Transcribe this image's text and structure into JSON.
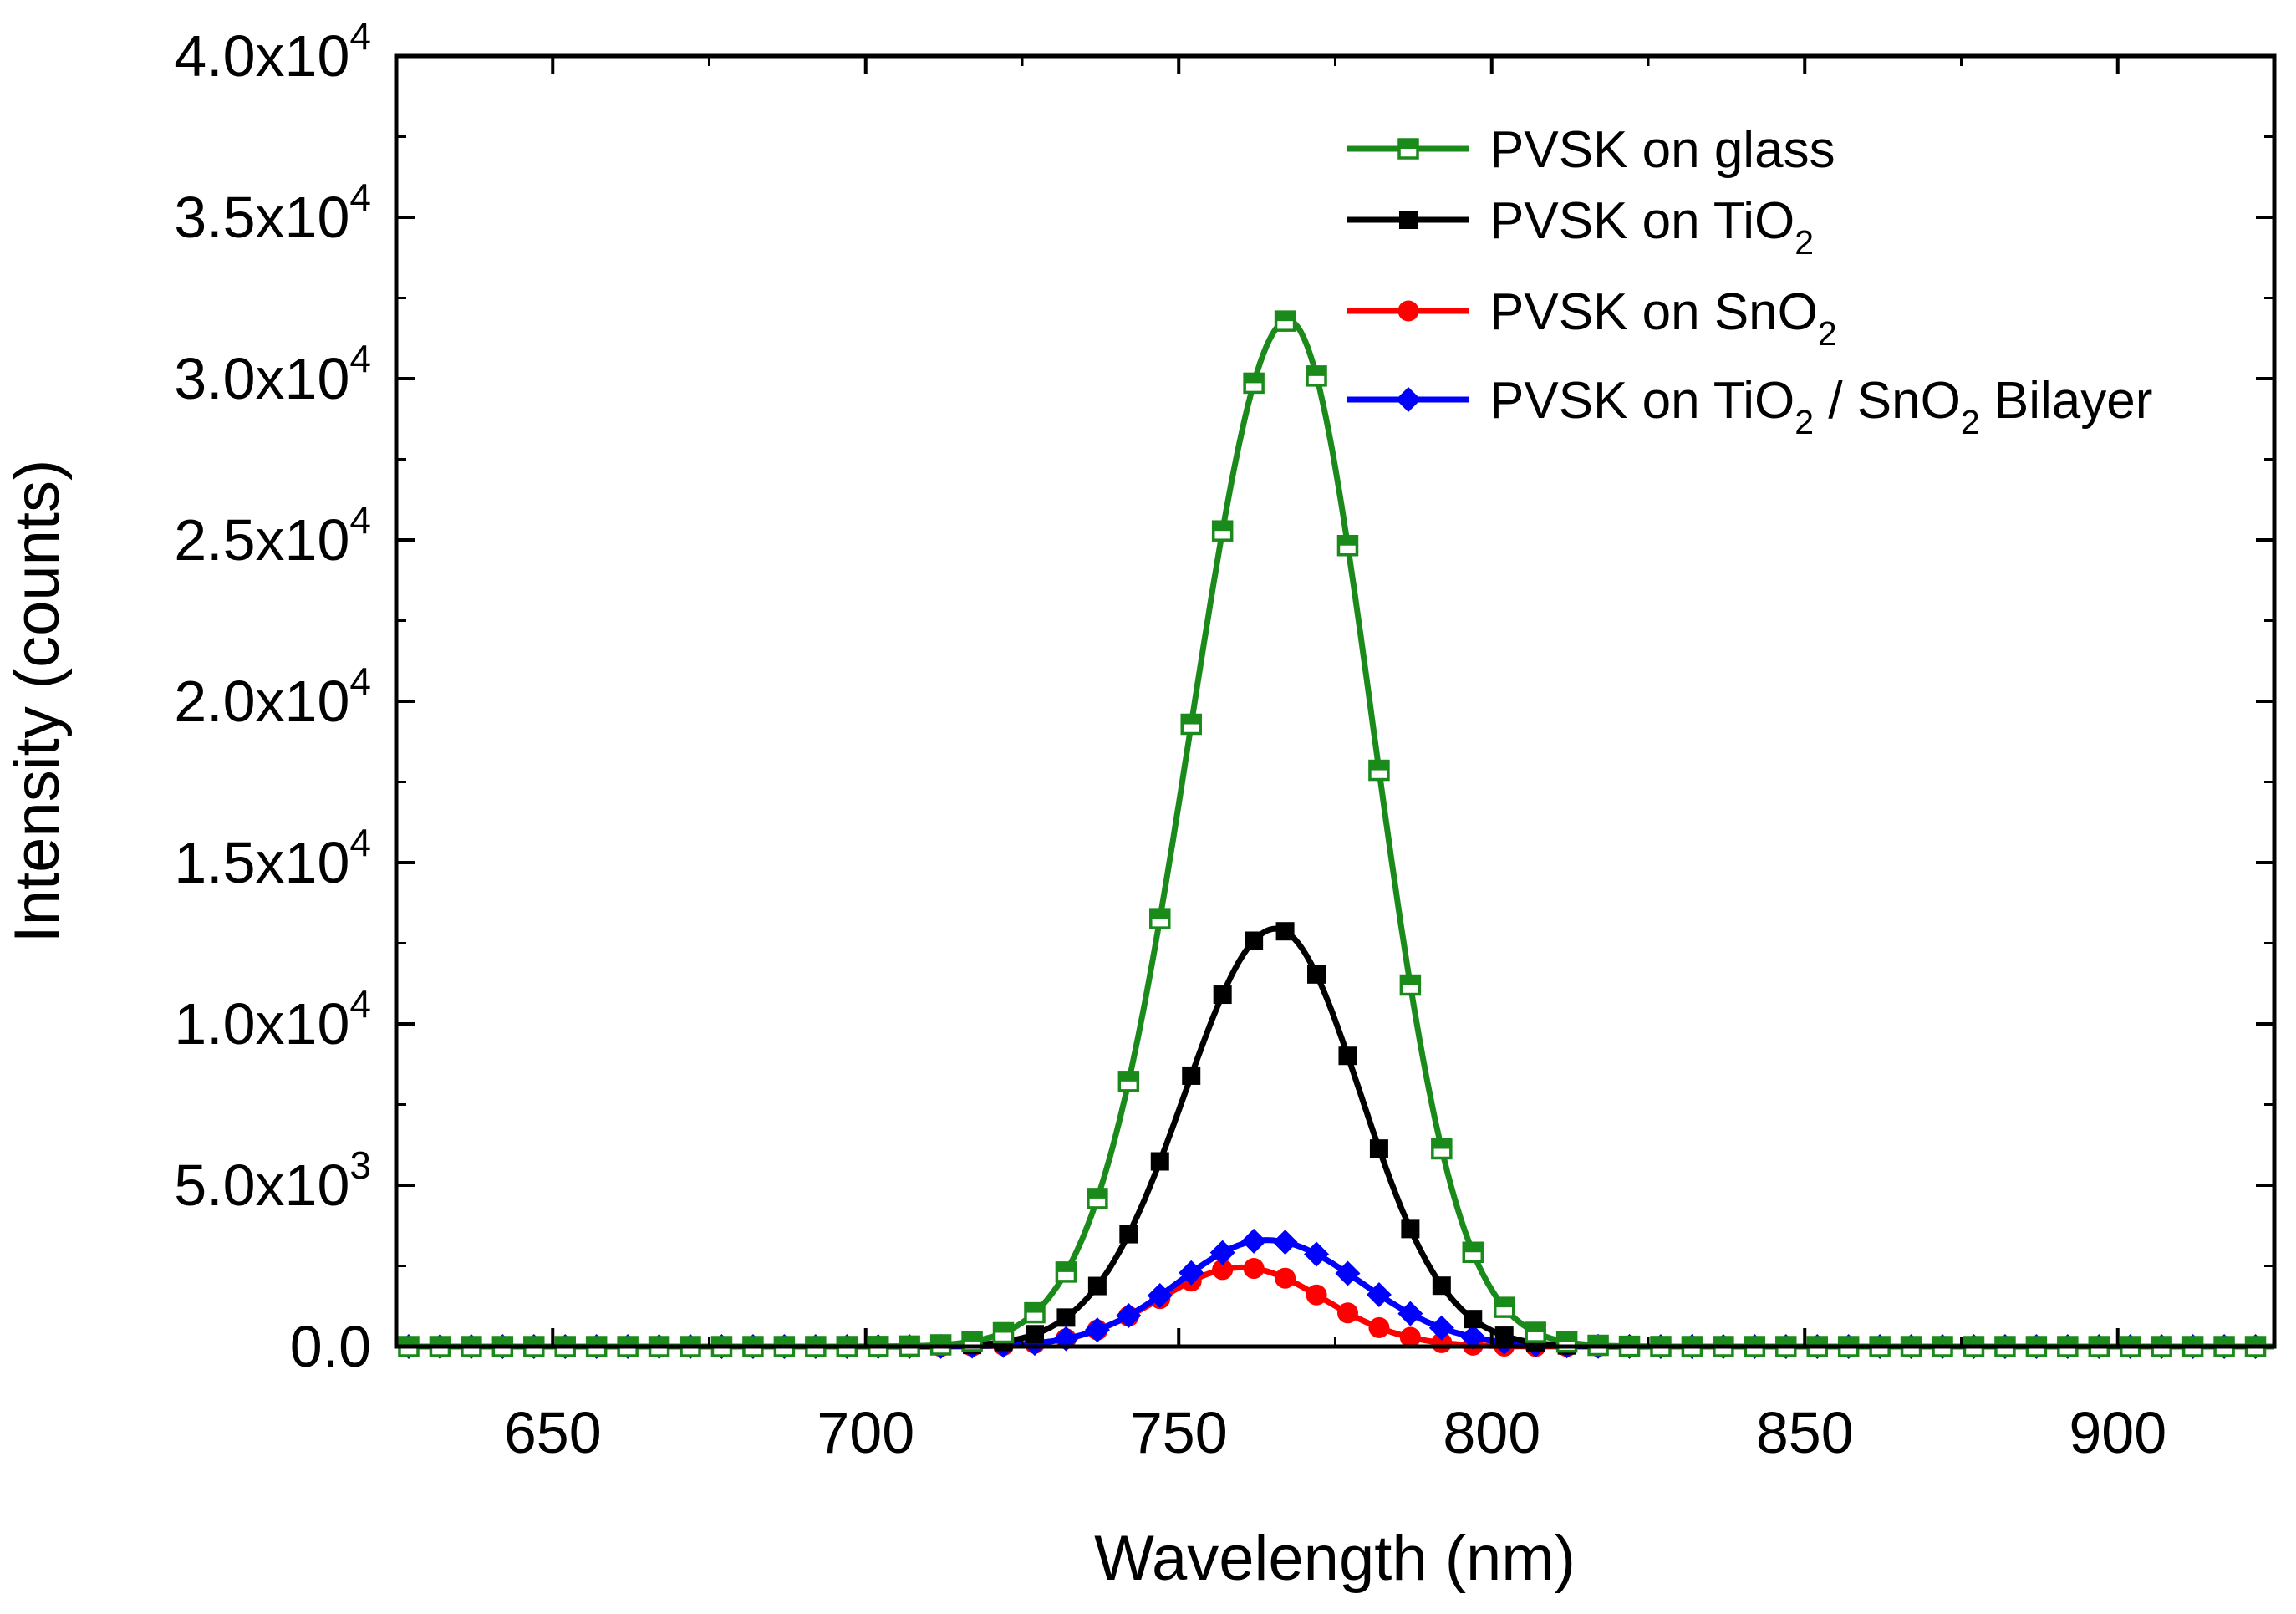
{
  "chart_data": {
    "type": "line",
    "title": "",
    "xlabel": "Wavelength (nm)",
    "ylabel": "Intensity (counts)",
    "xlim": [
      625,
      925
    ],
    "ylim": [
      0,
      40000
    ],
    "x_ticks": [
      650,
      700,
      750,
      800,
      850,
      900
    ],
    "x_tick_labels": [
      "650",
      "700",
      "750",
      "800",
      "850",
      "900"
    ],
    "y_ticks": [
      {
        "value": 0,
        "mantissa": "0.0",
        "exponent": ""
      },
      {
        "value": 5000,
        "mantissa": "5.0x10",
        "exponent": "3"
      },
      {
        "value": 10000,
        "mantissa": "1.0x10",
        "exponent": "4"
      },
      {
        "value": 15000,
        "mantissa": "1.5x10",
        "exponent": "4"
      },
      {
        "value": 20000,
        "mantissa": "2.0x10",
        "exponent": "4"
      },
      {
        "value": 25000,
        "mantissa": "2.5x10",
        "exponent": "4"
      },
      {
        "value": 30000,
        "mantissa": "3.0x10",
        "exponent": "4"
      },
      {
        "value": 35000,
        "mantissa": "3.5x10",
        "exponent": "4"
      },
      {
        "value": 40000,
        "mantissa": "4.0x10",
        "exponent": "4"
      }
    ],
    "x_range": {
      "start": 627,
      "end": 925,
      "step": 5
    },
    "grid": false,
    "legend_position": "top-right",
    "series": [
      {
        "name": "PVSK on glass",
        "label_parts": [
          {
            "text": "PVSK on glass",
            "sub": false
          }
        ],
        "color": "#1a8a1a",
        "marker": "half-filled-square",
        "peak": 31800,
        "center": 767.5,
        "sigma_left": 15.5,
        "sigma_right": 13.5
      },
      {
        "name": "PVSK on TiO2",
        "label_parts": [
          {
            "text": "PVSK on TiO",
            "sub": false
          },
          {
            "text": "2",
            "sub": true
          }
        ],
        "color": "#000000",
        "marker": "filled-square",
        "peak": 12950,
        "center": 765.5,
        "sigma_left": 14.5,
        "sigma_right": 13.5
      },
      {
        "name": "PVSK on SnO2",
        "label_parts": [
          {
            "text": "PVSK on SnO",
            "sub": false
          },
          {
            "text": "2",
            "sub": true
          }
        ],
        "color": "#ff0000",
        "marker": "filled-circle",
        "peak": 2450,
        "center": 760,
        "sigma_left": 13,
        "sigma_right": 13
      },
      {
        "name": "PVSK on TiO2 / SnO2 Bilayer",
        "label_parts": [
          {
            "text": "PVSK on TiO",
            "sub": false
          },
          {
            "text": "2",
            "sub": true
          },
          {
            "text": " / SnO",
            "sub": false
          },
          {
            "text": "2",
            "sub": true
          },
          {
            "text": " Bilayer",
            "sub": false
          }
        ],
        "color": "#0000ff",
        "marker": "filled-diamond",
        "peak": 3300,
        "center": 764,
        "sigma_left": 14,
        "sigma_right": 15
      }
    ]
  }
}
